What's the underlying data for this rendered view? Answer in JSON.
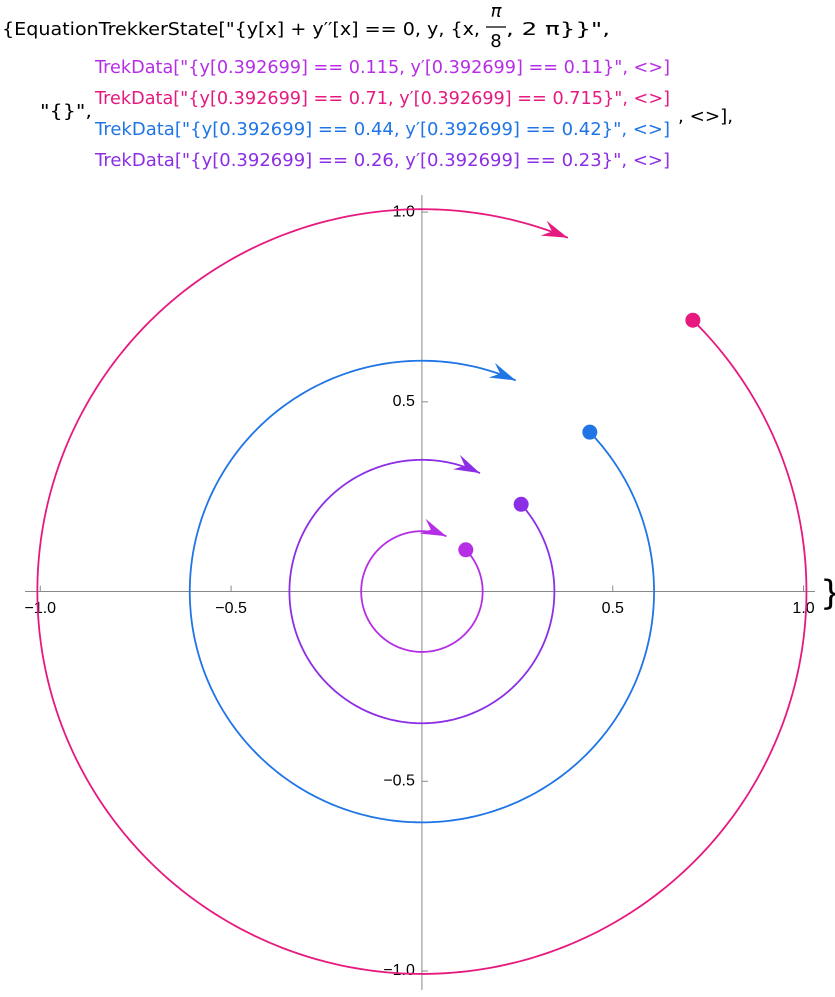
{
  "header": {
    "line1": "{EquationTrekkerState[\"{y[x] + y′′[x] == 0, y, {x,",
    "pi": "π",
    "eight": "8",
    "line1_end": ", 2 π}}\",",
    "state": "\"{}\",",
    "tail": ", <>],",
    "close": "}"
  },
  "chart_data": {
    "type": "phase",
    "xrange": [
      0.392699,
      6.283185
    ],
    "xlim": [
      -1.04,
      1.03
    ],
    "ylim": [
      -1.05,
      1.045
    ],
    "xticks": [
      {
        "value": -1,
        "label": "−1.0"
      },
      {
        "value": -0.5,
        "label": "−0.5"
      },
      0.5,
      {
        "value": 1,
        "label": "1.0"
      }
    ],
    "yticks": [
      {
        "value": -1,
        "label": "−1.0"
      },
      {
        "value": -0.5,
        "label": "−0.5"
      },
      0.5,
      {
        "value": 1,
        "label": "1.0"
      }
    ],
    "series": [
      {
        "name": "TrekData[\"{y[0.392699] == 0.115, y′[0.392699] == 0.11}\",  <>]",
        "color": "#b52ee6",
        "x": [
          0.115
        ],
        "values": [
          0.11
        ]
      },
      {
        "name": "TrekData[\"{y[0.392699] == 0.71, y′[0.392699] == 0.715}\",  <>]",
        "color": "#e6197f",
        "x": [
          0.71
        ],
        "values": [
          0.715
        ]
      },
      {
        "name": "TrekData[\"{y[0.392699] == 0.44, y′[0.392699] == 0.42}\",  <>]",
        "color": "#1f75e6",
        "x": [
          0.44
        ],
        "values": [
          0.42
        ]
      },
      {
        "name": "TrekData[\"{y[0.392699] == 0.26, y′[0.392699] == 0.23}\",  <>]",
        "color": "#8c2ee6",
        "x": [
          0.26
        ],
        "values": [
          0.23
        ]
      }
    ]
  }
}
